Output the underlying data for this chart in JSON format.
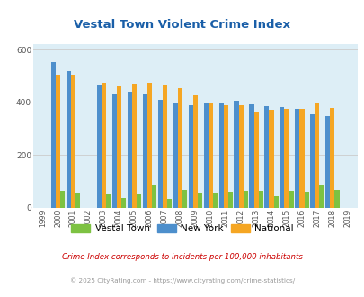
{
  "title": "Vestal Town Violent Crime Index",
  "years": [
    1999,
    2000,
    2001,
    2002,
    2003,
    2004,
    2005,
    2006,
    2007,
    2008,
    2009,
    2010,
    2011,
    2012,
    2013,
    2014,
    2015,
    2016,
    2017,
    2018,
    2019
  ],
  "vestal_town": [
    0,
    65,
    55,
    0,
    50,
    38,
    52,
    85,
    35,
    68,
    58,
    57,
    62,
    65,
    65,
    45,
    65,
    62,
    85,
    68,
    0
  ],
  "new_york": [
    0,
    555,
    520,
    0,
    465,
    435,
    442,
    435,
    410,
    398,
    388,
    398,
    398,
    405,
    392,
    385,
    382,
    375,
    355,
    350,
    0
  ],
  "national": [
    0,
    505,
    505,
    0,
    475,
    462,
    470,
    475,
    465,
    455,
    428,
    400,
    388,
    388,
    365,
    372,
    375,
    375,
    398,
    378,
    0
  ],
  "bar_width": 0.3,
  "colors": {
    "vestal_town": "#7dc242",
    "new_york": "#4d8fcc",
    "national": "#f5a623"
  },
  "bg_color": "#ddeef6",
  "ylim": [
    0,
    620
  ],
  "yticks": [
    0,
    200,
    400,
    600
  ],
  "legend_labels": [
    "Vestal Town",
    "New York",
    "National"
  ],
  "footnote1": "Crime Index corresponds to incidents per 100,000 inhabitants",
  "footnote2": "© 2025 CityRating.com - https://www.cityrating.com/crime-statistics/",
  "title_color": "#1a5fa8",
  "footnote1_color": "#cc0000",
  "footnote2_color": "#999999"
}
